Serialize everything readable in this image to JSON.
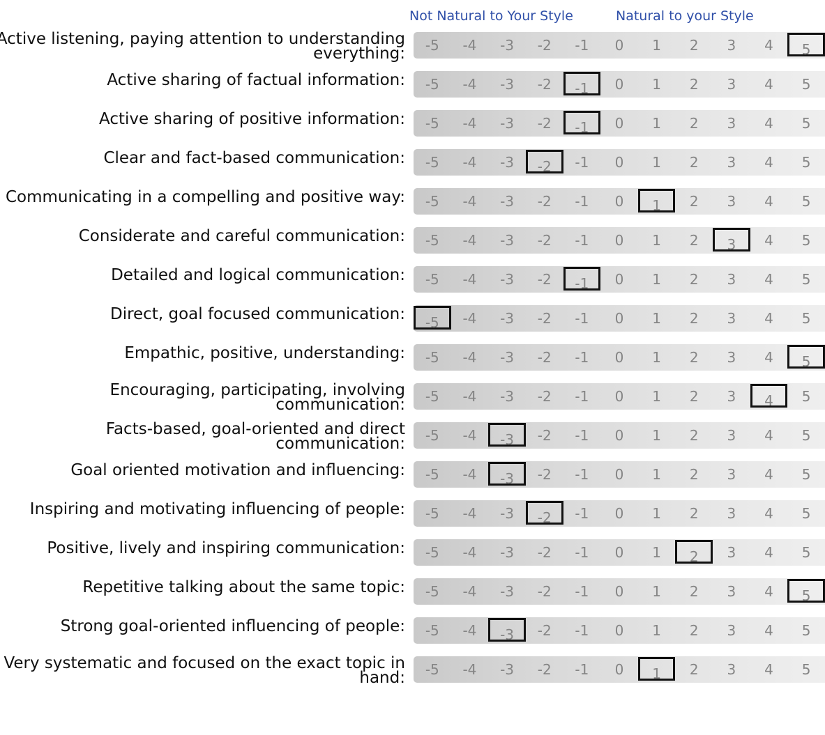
{
  "header": {
    "left_label": "Not Natural to Your Style",
    "right_label": "Natural to your Style"
  },
  "scale_values": [
    "-5",
    "-4",
    "-3",
    "-2",
    "-1",
    "0",
    "1",
    "2",
    "3",
    "4",
    "5"
  ],
  "rows": [
    {
      "label": "Active listening, paying attention to understanding everything:",
      "selected": "5"
    },
    {
      "label": "Active sharing of factual information:",
      "selected": "-1"
    },
    {
      "label": "Active sharing of positive information:",
      "selected": "-1"
    },
    {
      "label": "Clear and fact-based communication:",
      "selected": "-2"
    },
    {
      "label": "Communicating in a compelling and positive way:",
      "selected": "1"
    },
    {
      "label": "Considerate and careful communication:",
      "selected": "3"
    },
    {
      "label": "Detailed and logical communication:",
      "selected": "-1"
    },
    {
      "label": "Direct, goal focused communication:",
      "selected": "-5"
    },
    {
      "label": "Empathic, positive, understanding:",
      "selected": "5"
    },
    {
      "label": "Encouraging, participating, involving communication:",
      "selected": "4"
    },
    {
      "label": "Facts-based, goal-oriented and direct communication:",
      "selected": "-3"
    },
    {
      "label": "Goal oriented motivation and influencing:",
      "selected": "-3"
    },
    {
      "label": "Inspiring and motivating influencing of people:",
      "selected": "-2"
    },
    {
      "label": "Positive, lively and inspiring communication:",
      "selected": "2"
    },
    {
      "label": "Repetitive talking about the same topic:",
      "selected": "5"
    },
    {
      "label": "Strong goal-oriented influencing of people:",
      "selected": "-3"
    },
    {
      "label": "Very systematic and focused on the exact topic in hand:",
      "selected": "1"
    }
  ],
  "colors": {
    "header_text": "#2f4fa8",
    "scale_text": "#858585",
    "selection_border": "#111111"
  }
}
